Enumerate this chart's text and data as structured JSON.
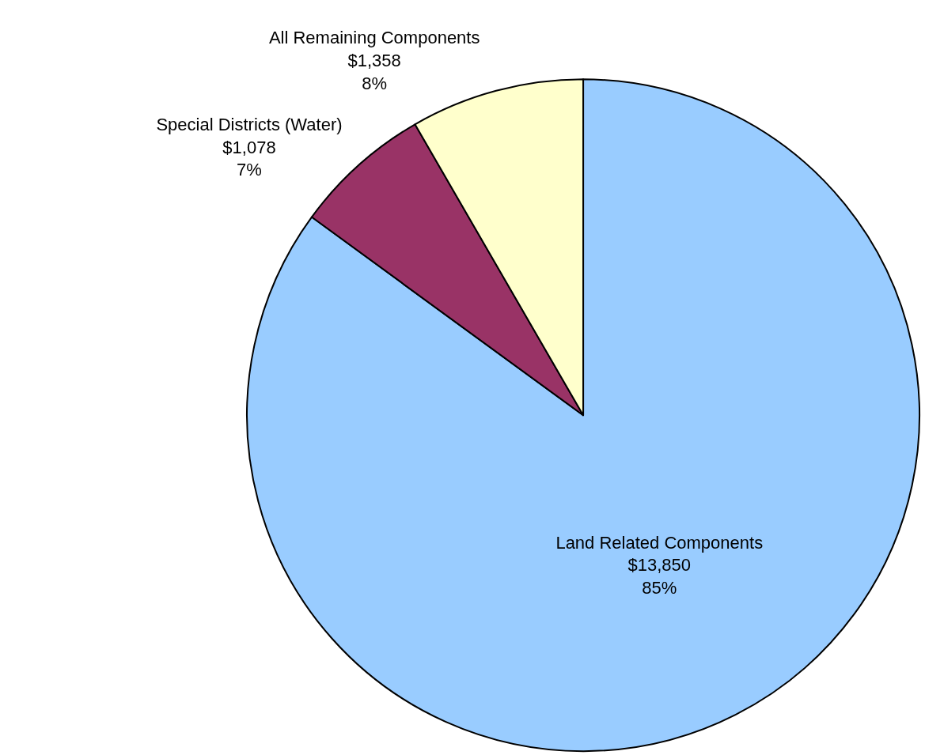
{
  "chart_data": {
    "type": "pie",
    "categories": [
      "Land Related Components",
      "Special Districts (Water)",
      "All Remaining Components"
    ],
    "values": [
      13850,
      1078,
      1358
    ],
    "colors": [
      "#99ccff",
      "#993366",
      "#ffffcc"
    ],
    "value_labels": [
      "$13,850\n85%",
      "$1,078\n7%",
      "$1,358\n8%"
    ],
    "legend": false
  }
}
